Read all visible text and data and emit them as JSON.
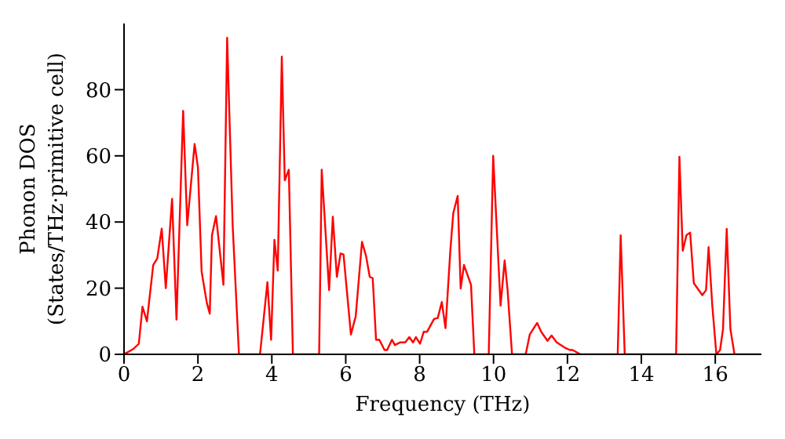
{
  "chart_data": {
    "type": "line",
    "xlabel": "Frequency (THz)",
    "ylabel": "Phonon DOS\n(States/THz·primitive cell)",
    "x": [
      0,
      0.25,
      0.4,
      0.5,
      0.62,
      0.79,
      0.9,
      1.02,
      1.13,
      1.3,
      1.42,
      1.6,
      1.71,
      1.91,
      2.0,
      2.1,
      2.24,
      2.32,
      2.38,
      2.49,
      2.69,
      2.79,
      2.94,
      3.11,
      3.68,
      3.88,
      3.98,
      4.07,
      4.16,
      4.27,
      4.35,
      4.46,
      4.57,
      5.28,
      5.35,
      5.55,
      5.65,
      5.76,
      5.86,
      5.94,
      6.14,
      6.27,
      6.44,
      6.55,
      6.65,
      6.73,
      6.82,
      6.91,
      7.05,
      7.12,
      7.25,
      7.33,
      7.47,
      7.61,
      7.72,
      7.82,
      7.9,
      8.01,
      8.11,
      8.2,
      8.39,
      8.49,
      8.6,
      8.7,
      8.83,
      8.91,
      9.03,
      9.11,
      9.2,
      9.39,
      9.48,
      9.87,
      9.99,
      10.19,
      10.3,
      10.38,
      10.5,
      10.87,
      10.98,
      11.18,
      11.29,
      11.46,
      11.57,
      11.71,
      11.93,
      12.07,
      12.14,
      12.35,
      13.36,
      13.44,
      13.55,
      14.94,
      15.03,
      15.12,
      15.22,
      15.32,
      15.42,
      15.65,
      15.75,
      15.82,
      15.92,
      16.03,
      16.13,
      16.21,
      16.31,
      16.41,
      16.52,
      17.23
    ],
    "series": [
      {
        "color": "#ff0000",
        "values": [
          0,
          1.6,
          3.2,
          14.4,
          10,
          27,
          29,
          38,
          20,
          47,
          10.5,
          73.6,
          39,
          63.6,
          56.5,
          25,
          15.6,
          12.3,
          36,
          41.8,
          21,
          95.7,
          39,
          0,
          0,
          21.8,
          4.4,
          34.6,
          25.3,
          90,
          52.6,
          55.8,
          0,
          0,
          55.8,
          19.4,
          41.6,
          23.4,
          30.5,
          30.2,
          6,
          11.5,
          34,
          29.7,
          23.4,
          23,
          4.4,
          4.4,
          1.3,
          1.3,
          4.4,
          2.8,
          3.6,
          3.6,
          5.2,
          3.6,
          5.2,
          3.2,
          6.8,
          6.8,
          10.7,
          11,
          15.8,
          7.9,
          31.3,
          42.7,
          47.9,
          19.9,
          27,
          21,
          0,
          0,
          60,
          14.7,
          28.4,
          19.4,
          0,
          0,
          6,
          9.5,
          6.8,
          4.1,
          5.7,
          3.6,
          2,
          1.3,
          1.3,
          0,
          0,
          36,
          0,
          0,
          59.7,
          31.3,
          36,
          36.8,
          21.5,
          17.9,
          19.4,
          32.4,
          14.7,
          0,
          1.3,
          7.6,
          37.9,
          7.6,
          0,
          0
        ]
      }
    ],
    "xlim": [
      0,
      17.25
    ],
    "xticks": [
      0,
      2,
      4,
      6,
      8,
      10,
      12,
      14,
      16
    ],
    "ylim": [
      0,
      100
    ],
    "yticks": [
      0,
      20,
      40,
      60,
      80
    ],
    "grid": false,
    "legend": false,
    "marker": "none",
    "line_style": "solid"
  }
}
